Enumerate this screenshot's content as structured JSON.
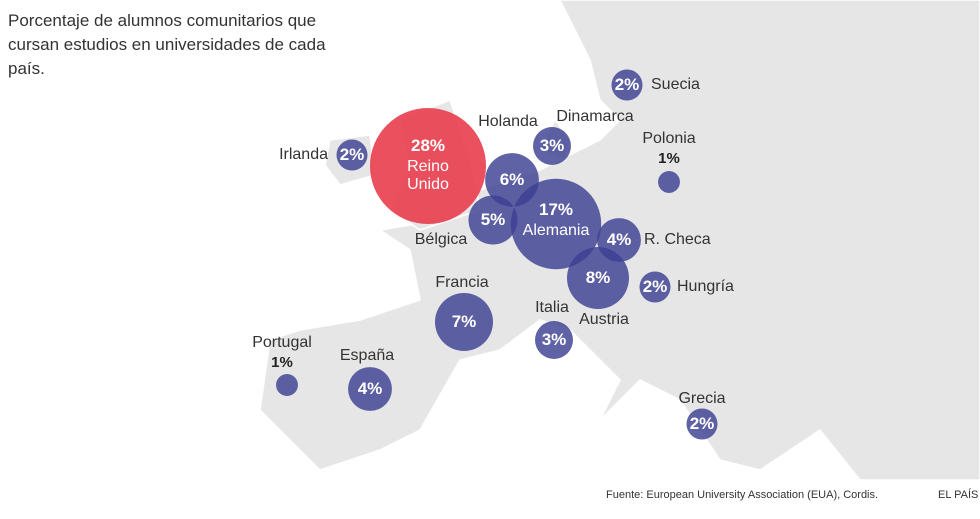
{
  "title": "Porcentaje de alumnos comunitarios que cursan estudios en universidades de cada país.",
  "source": "Fuente: European University Association (EUA), Cordis.",
  "brand": "EL PAÍS",
  "countries": [
    {
      "name": "Irlanda",
      "value": 2,
      "label": "2%"
    },
    {
      "name": "Reino Unido",
      "value": 28,
      "label": "28%"
    },
    {
      "name": "Holanda",
      "value": 6,
      "label": "6%"
    },
    {
      "name": "Bélgica",
      "value": 5,
      "label": "5%"
    },
    {
      "name": "Dinamarca",
      "value": 3,
      "label": "3%"
    },
    {
      "name": "Suecia",
      "value": 2,
      "label": "2%"
    },
    {
      "name": "Polonia",
      "value": 1,
      "label": "1%"
    },
    {
      "name": "Alemania",
      "value": 17,
      "label": "17%"
    },
    {
      "name": "R. Checa",
      "value": 4,
      "label": "4%"
    },
    {
      "name": "Austria",
      "value": 8,
      "label": "8%"
    },
    {
      "name": "Hungría",
      "value": 2,
      "label": "2%"
    },
    {
      "name": "Francia",
      "value": 7,
      "label": "7%"
    },
    {
      "name": "Italia",
      "value": 3,
      "label": "3%"
    },
    {
      "name": "Portugal",
      "value": 1,
      "label": "1%"
    },
    {
      "name": "España",
      "value": 4,
      "label": "4%"
    },
    {
      "name": "Grecia",
      "value": 2,
      "label": "2%"
    }
  ]
}
